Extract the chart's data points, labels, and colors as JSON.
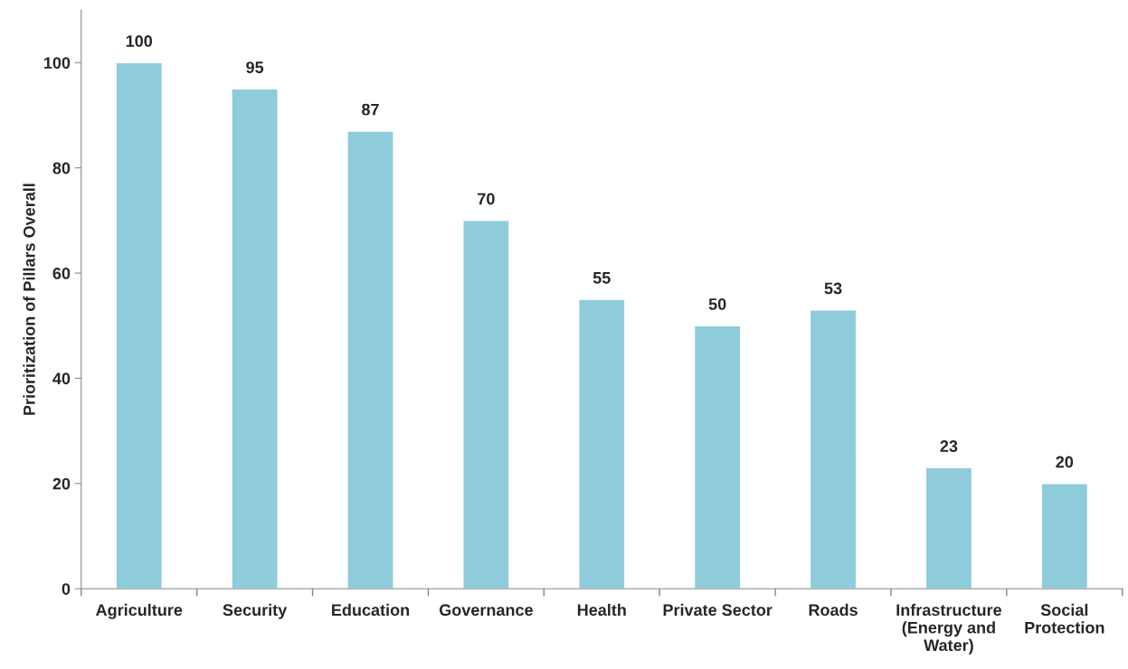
{
  "chart_data": {
    "type": "bar",
    "ylabel": "Prioritization of Pillars Overall",
    "categories": [
      "Agriculture",
      "Security",
      "Education",
      "Governance",
      "Health",
      "Private Sector",
      "Roads",
      "Infrastructure\n(Energy and\nWater)",
      "Social\nProtection"
    ],
    "values": [
      100,
      95,
      87,
      70,
      55,
      50,
      53,
      23,
      20
    ],
    "color": "#8ecbdb",
    "ylim": [
      0,
      110
    ],
    "yticks": [
      0,
      20,
      40,
      60,
      80,
      100
    ],
    "grid": false,
    "data_labels": true
  }
}
